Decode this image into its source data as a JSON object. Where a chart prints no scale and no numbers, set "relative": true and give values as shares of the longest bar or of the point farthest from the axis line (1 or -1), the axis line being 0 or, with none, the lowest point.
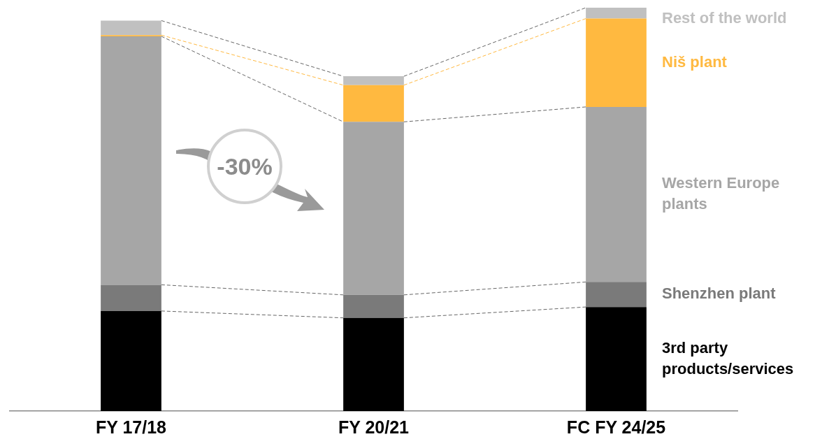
{
  "chart_data": {
    "type": "bar",
    "stacked": true,
    "relative": true,
    "categories": [
      "FY 17/18",
      "FY 20/21",
      "FC FY 24/25"
    ],
    "series": [
      {
        "name": "3rd party products/services",
        "color": "#000000",
        "values": [
          0.248,
          0.231,
          0.258
        ]
      },
      {
        "name": "Shenzhen plant",
        "color": "#7a7a7a",
        "values": [
          0.065,
          0.057,
          0.062
        ]
      },
      {
        "name": "Western Europe plants",
        "color": "#a6a6a6",
        "values": [
          0.616,
          0.429,
          0.434
        ]
      },
      {
        "name": "Niš plant",
        "color": "#ffb940",
        "values": [
          0.003,
          0.091,
          0.219
        ]
      },
      {
        "name": "Rest of the world",
        "color": "#c0c0c0",
        "values": [
          0.036,
          0.022,
          0.027
        ]
      }
    ],
    "annotations": [
      "-30%"
    ]
  }
}
